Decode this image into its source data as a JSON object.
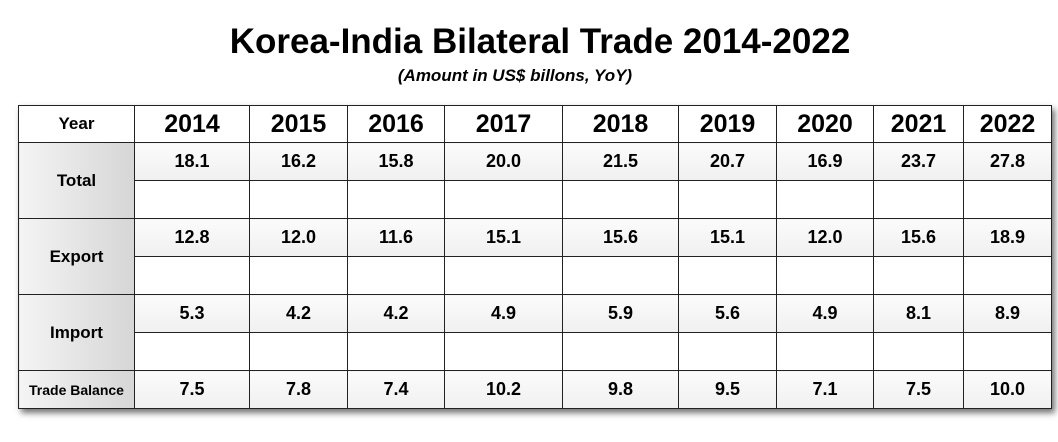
{
  "title": "Korea-India Bilateral Trade 2014-2022",
  "subtitle": "(Amount in US$ billons, YoY)",
  "table": {
    "corner_label": "Year",
    "years": [
      "2014",
      "2015",
      "2016",
      "2017",
      "2018",
      "2019",
      "2020",
      "2021",
      "2022"
    ],
    "rows": [
      {
        "label": "Total",
        "values": [
          "18.1",
          "16.2",
          "15.8",
          "20.0",
          "21.5",
          "20.7",
          "16.9",
          "23.7",
          "27.8"
        ]
      },
      {
        "label": "Export",
        "values": [
          "12.8",
          "12.0",
          "11.6",
          "15.1",
          "15.6",
          "15.1",
          "12.0",
          "15.6",
          "18.9"
        ]
      },
      {
        "label": "Import",
        "values": [
          "5.3",
          "4.2",
          "4.2",
          "4.9",
          "5.9",
          "5.6",
          "4.9",
          "8.1",
          "8.9"
        ]
      },
      {
        "label": "Trade Balance",
        "values": [
          "7.5",
          "7.8",
          "7.4",
          "10.2",
          "9.8",
          "9.5",
          "7.1",
          "7.5",
          "10.0"
        ]
      }
    ]
  }
}
